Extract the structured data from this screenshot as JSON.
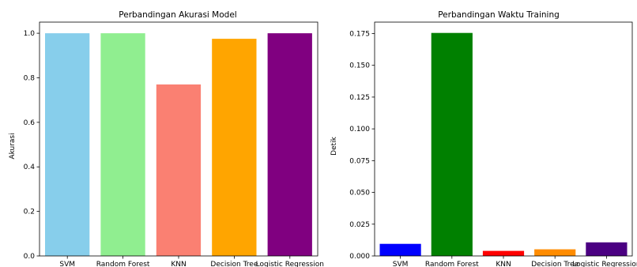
{
  "chart_data": [
    {
      "type": "bar",
      "title": "Perbandingan Akurasi Model",
      "xlabel": "",
      "ylabel": "Akurasi",
      "categories": [
        "SVM",
        "Random Forest",
        "KNN",
        "Decision Tree",
        "Logistic Regression"
      ],
      "values": [
        1.0,
        1.0,
        0.77,
        0.975,
        1.0
      ],
      "colors": [
        "#87ceeb",
        "#90ee90",
        "#fa8072",
        "#ffa500",
        "#800080"
      ],
      "ylim": [
        0,
        1.05
      ],
      "yticks": [
        0.0,
        0.2,
        0.4,
        0.6,
        0.8,
        1.0
      ],
      "ytick_labels": [
        "0.0",
        "0.2",
        "0.4",
        "0.6",
        "0.8",
        "1.0"
      ],
      "grid": false,
      "legend": "none"
    },
    {
      "type": "bar",
      "title": "Perbandingan Waktu Training",
      "xlabel": "",
      "ylabel": "Detik",
      "categories": [
        "SVM",
        "Random Forest",
        "KNN",
        "Decision Tree",
        "Logistic Regression"
      ],
      "values": [
        0.0095,
        0.1755,
        0.004,
        0.0052,
        0.0107
      ],
      "colors": [
        "#0000ff",
        "#008000",
        "#ff0000",
        "#ff8c00",
        "#4b0082"
      ],
      "ylim": [
        0,
        0.184
      ],
      "yticks": [
        0.0,
        0.025,
        0.05,
        0.075,
        0.1,
        0.125,
        0.15,
        0.175
      ],
      "ytick_labels": [
        "0.000",
        "0.025",
        "0.050",
        "0.075",
        "0.100",
        "0.125",
        "0.150",
        "0.175"
      ],
      "grid": false,
      "legend": "none"
    }
  ]
}
